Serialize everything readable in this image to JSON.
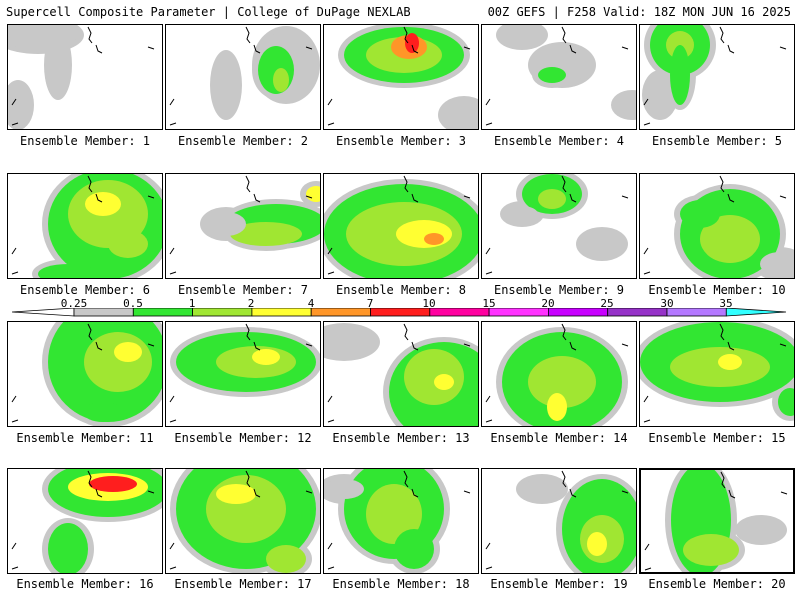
{
  "header": {
    "left_title": "Supercell Composite Parameter | College of DuPage NEXLAB",
    "right_title": "00Z GEFS | F258 Valid: 18Z MON JUN 16 2025"
  },
  "colorbar": {
    "labels": [
      "0.25",
      "0.5",
      "1",
      "2",
      "4",
      "7",
      "10",
      "15",
      "20",
      "25",
      "30",
      "35"
    ],
    "colors": [
      "#ffffff",
      "#c8c8c8",
      "#32e632",
      "#a0e632",
      "#ffff32",
      "#ff9628",
      "#ff1e1e",
      "#ff00a0",
      "#ff32ff",
      "#c800ff",
      "#9632c8",
      "#b478ff",
      "#32ffff"
    ]
  },
  "members": [
    {
      "label": "Ensemble Member: 1"
    },
    {
      "label": "Ensemble Member: 2"
    },
    {
      "label": "Ensemble Member: 3"
    },
    {
      "label": "Ensemble Member: 4"
    },
    {
      "label": "Ensemble Member: 5"
    },
    {
      "label": "Ensemble Member: 6"
    },
    {
      "label": "Ensemble Member: 7"
    },
    {
      "label": "Ensemble Member: 8"
    },
    {
      "label": "Ensemble Member: 9"
    },
    {
      "label": "Ensemble Member: 10"
    },
    {
      "label": "Ensemble Member: 11"
    },
    {
      "label": "Ensemble Member: 12"
    },
    {
      "label": "Ensemble Member: 13"
    },
    {
      "label": "Ensemble Member: 14"
    },
    {
      "label": "Ensemble Member: 15"
    },
    {
      "label": "Ensemble Member: 16"
    },
    {
      "label": "Ensemble Member: 17"
    },
    {
      "label": "Ensemble Member: 18"
    },
    {
      "label": "Ensemble Member: 19"
    },
    {
      "label": "Ensemble Member: 20"
    }
  ]
}
